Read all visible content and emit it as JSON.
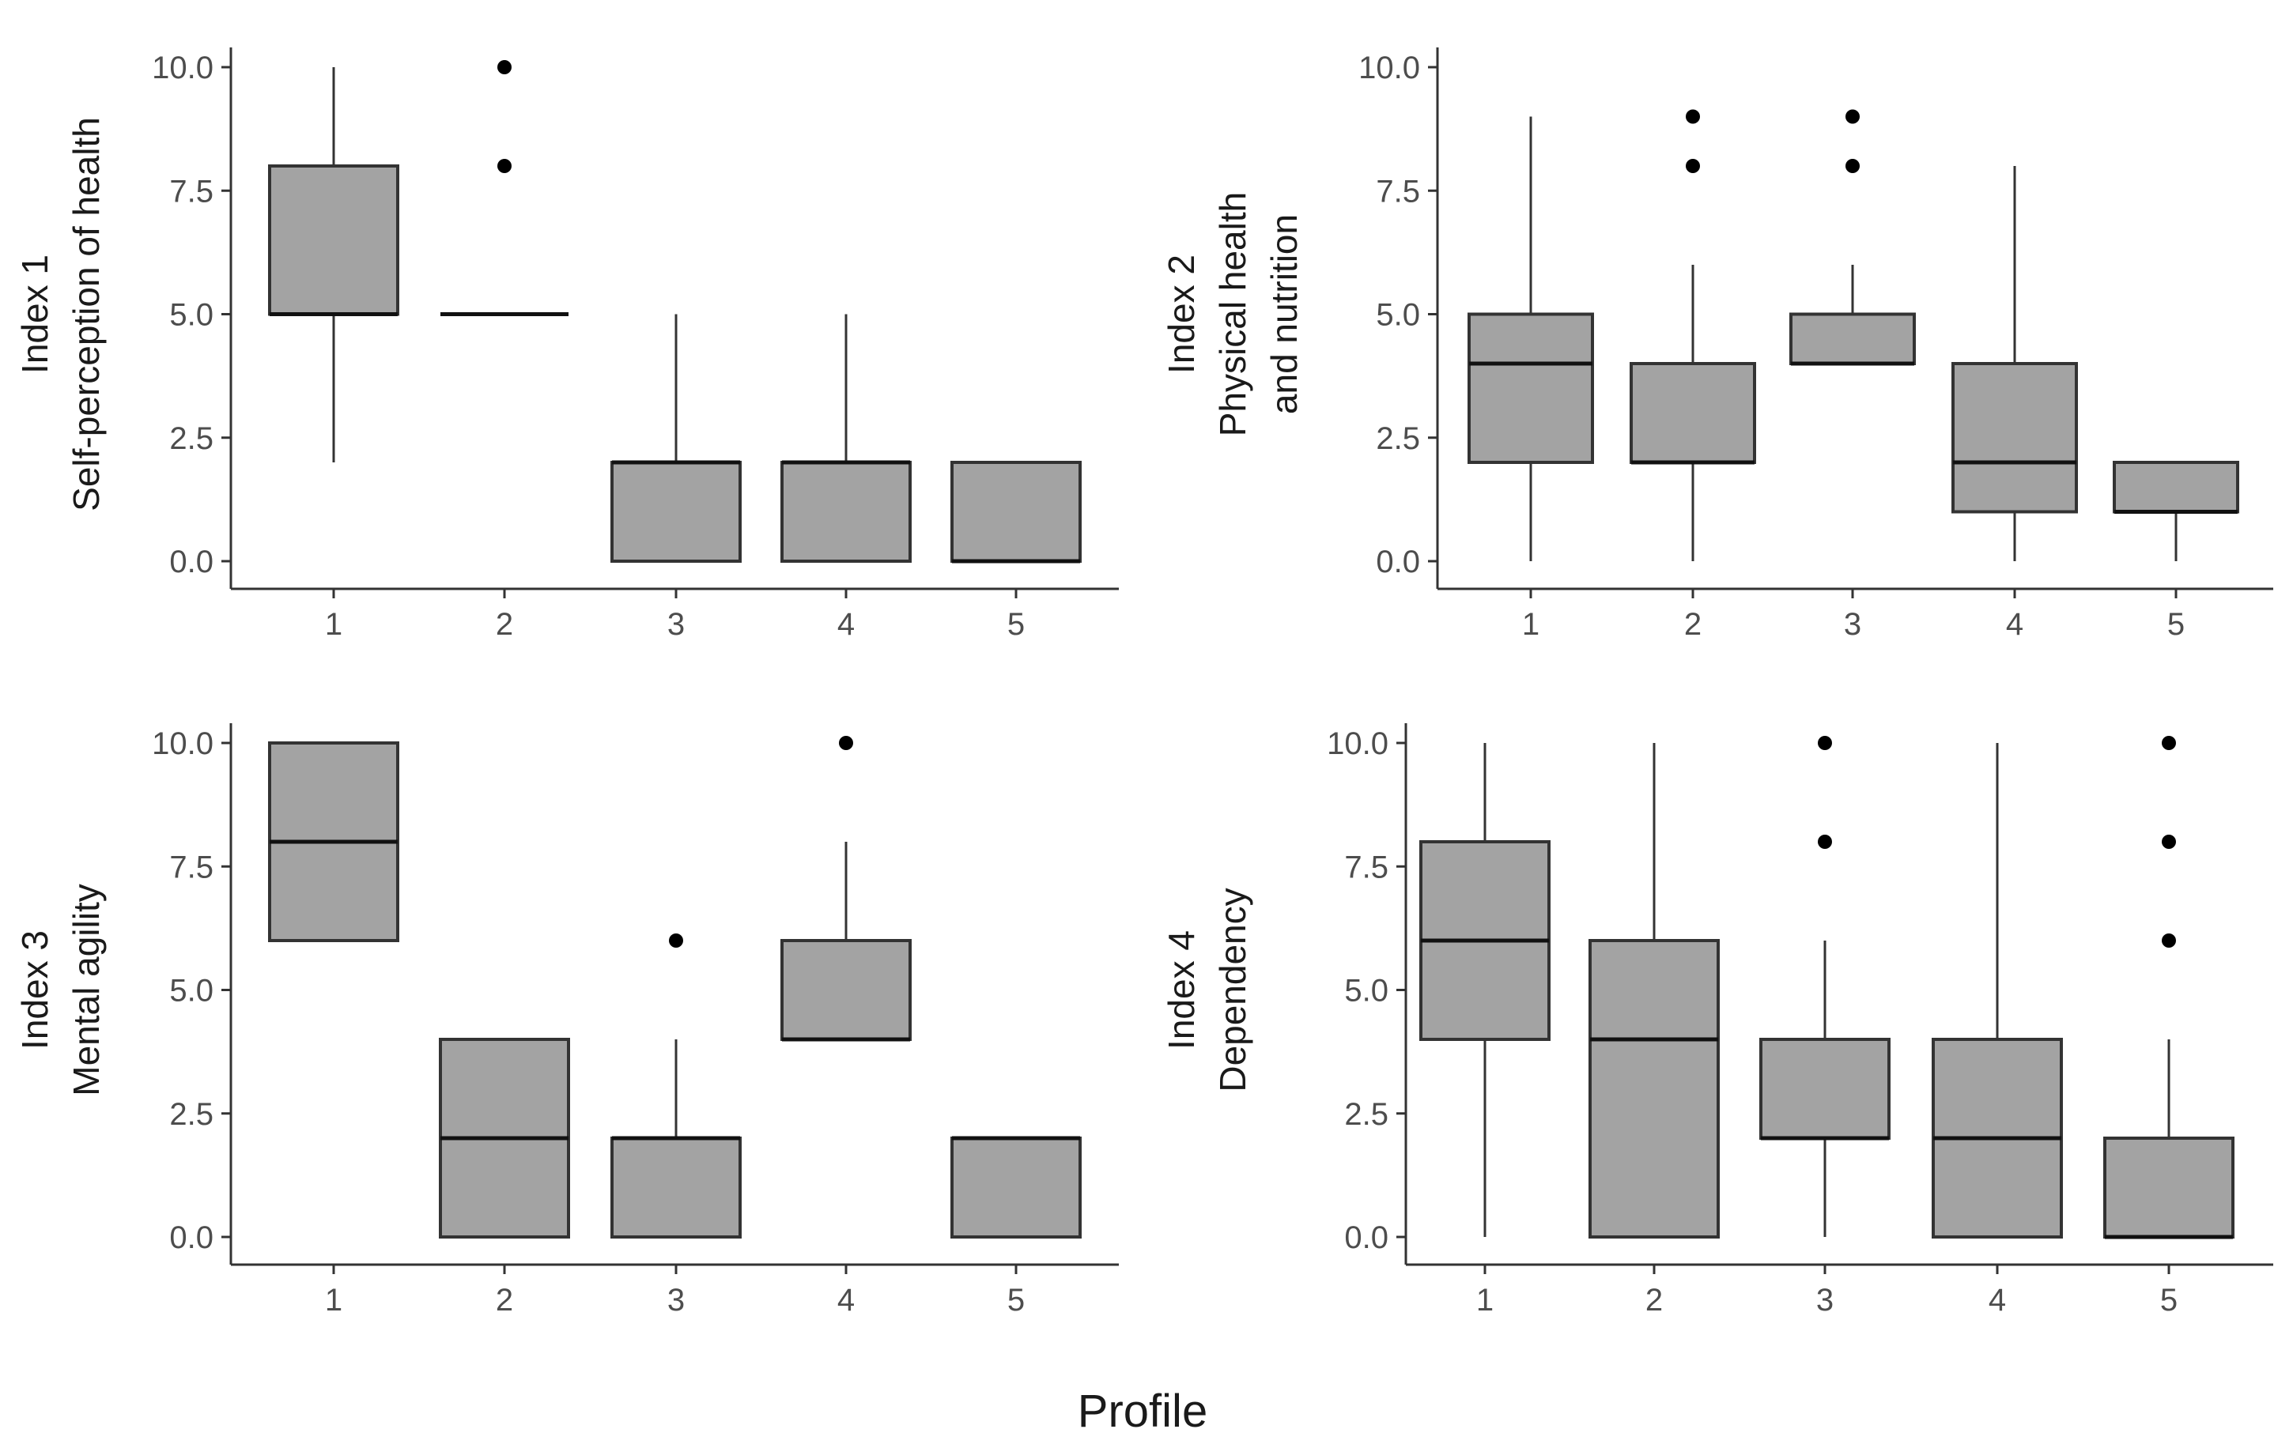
{
  "chart_data": {
    "type": "boxplot",
    "xlabel": "Profile",
    "categories": [
      "1",
      "2",
      "3",
      "4",
      "5"
    ],
    "ylim": [
      0,
      10
    ],
    "yticks": [
      "0.0",
      "2.5",
      "5.0",
      "7.5",
      "10.0"
    ],
    "panels": [
      {
        "ylabel_lines": [
          "Index 1",
          "Self-perception of health"
        ],
        "boxes": [
          {
            "profile": "1",
            "min": 2,
            "q1": 5,
            "median": 5,
            "q3": 8,
            "max": 10,
            "outliers": []
          },
          {
            "profile": "2",
            "min": 5,
            "q1": 5,
            "median": 5,
            "q3": 5,
            "max": 5,
            "outliers": [
              8,
              10
            ]
          },
          {
            "profile": "3",
            "min": 0,
            "q1": 0,
            "median": 2,
            "q3": 2,
            "max": 5,
            "outliers": []
          },
          {
            "profile": "4",
            "min": 0,
            "q1": 0,
            "median": 2,
            "q3": 2,
            "max": 5,
            "outliers": []
          },
          {
            "profile": "5",
            "min": 0,
            "q1": 0,
            "median": 0,
            "q3": 2,
            "max": 2,
            "outliers": []
          }
        ]
      },
      {
        "ylabel_lines": [
          "Index 2",
          "Physical health",
          "and nutrition"
        ],
        "boxes": [
          {
            "profile": "1",
            "min": 0,
            "q1": 2,
            "median": 4,
            "q3": 5,
            "max": 9,
            "outliers": []
          },
          {
            "profile": "2",
            "min": 0,
            "q1": 2,
            "median": 2,
            "q3": 4,
            "max": 6,
            "outliers": [
              8,
              9
            ]
          },
          {
            "profile": "3",
            "min": 4,
            "q1": 4,
            "median": 4,
            "q3": 5,
            "max": 6,
            "outliers": [
              8,
              9
            ]
          },
          {
            "profile": "4",
            "min": 0,
            "q1": 1,
            "median": 2,
            "q3": 4,
            "max": 8,
            "outliers": []
          },
          {
            "profile": "5",
            "min": 0,
            "q1": 1,
            "median": 1,
            "q3": 2,
            "max": 2,
            "outliers": []
          }
        ]
      },
      {
        "ylabel_lines": [
          "Index 3",
          "Mental agility"
        ],
        "boxes": [
          {
            "profile": "1",
            "min": 6,
            "q1": 6,
            "median": 8,
            "q3": 10,
            "max": 10,
            "outliers": []
          },
          {
            "profile": "2",
            "min": 0,
            "q1": 0,
            "median": 2,
            "q3": 4,
            "max": 4,
            "outliers": []
          },
          {
            "profile": "3",
            "min": 0,
            "q1": 0,
            "median": 2,
            "q3": 2,
            "max": 4,
            "outliers": [
              6
            ]
          },
          {
            "profile": "4",
            "min": 4,
            "q1": 4,
            "median": 4,
            "q3": 6,
            "max": 8,
            "outliers": [
              10
            ]
          },
          {
            "profile": "5",
            "min": 0,
            "q1": 0,
            "median": 2,
            "q3": 2,
            "max": 2,
            "outliers": []
          }
        ]
      },
      {
        "ylabel_lines": [
          "Index 4",
          "Dependency"
        ],
        "boxes": [
          {
            "profile": "1",
            "min": 0,
            "q1": 4,
            "median": 6,
            "q3": 8,
            "max": 10,
            "outliers": []
          },
          {
            "profile": "2",
            "min": 0,
            "q1": 0,
            "median": 4,
            "q3": 6,
            "max": 10,
            "outliers": []
          },
          {
            "profile": "3",
            "min": 0,
            "q1": 2,
            "median": 2,
            "q3": 4,
            "max": 6,
            "outliers": [
              8,
              10
            ]
          },
          {
            "profile": "4",
            "min": 0,
            "q1": 0,
            "median": 2,
            "q3": 4,
            "max": 10,
            "outliers": []
          },
          {
            "profile": "5",
            "min": 0,
            "q1": 0,
            "median": 0,
            "q3": 2,
            "max": 4,
            "outliers": [
              6,
              8,
              10
            ]
          }
        ]
      }
    ],
    "colors": {
      "box_fill": "#a3a3a3",
      "box_stroke": "#333333",
      "median": "#111111",
      "whisker": "#333333",
      "outlier": "#000000",
      "axis": "#333333"
    }
  }
}
